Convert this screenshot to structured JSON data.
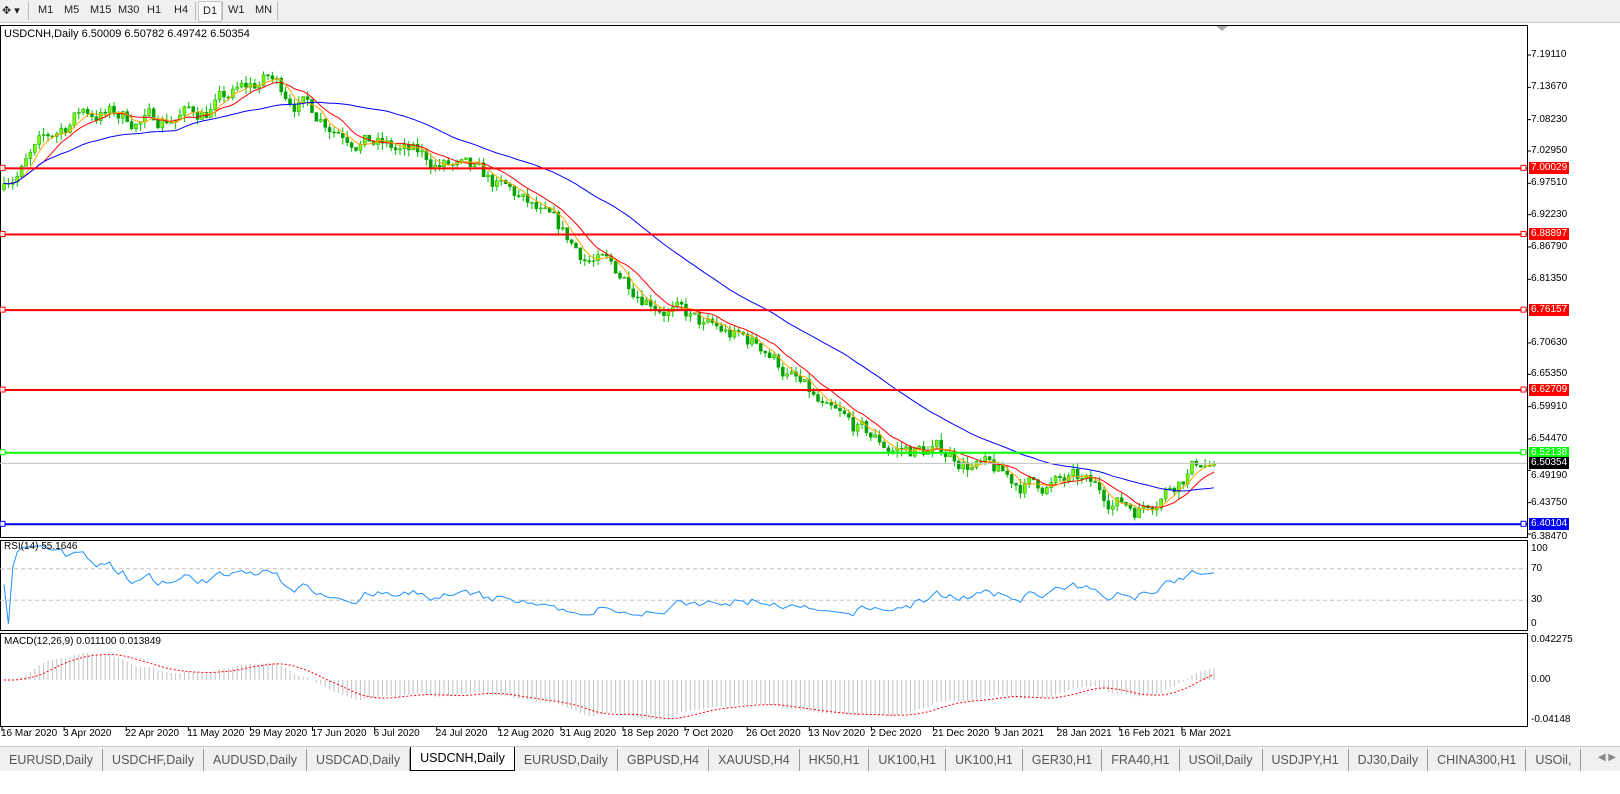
{
  "toolbar": {
    "timeframes": [
      "M1",
      "M5",
      "M15",
      "M30",
      "H1",
      "H4",
      "D1",
      "W1",
      "MN"
    ],
    "active": "D1"
  },
  "header": {
    "text": "USDCNH,Daily  6.50009 6.50782 6.49742 6.50354"
  },
  "price_axis": {
    "ticks": [
      "7.19110",
      "7.13670",
      "7.08230",
      "7.02950",
      "6.97510",
      "6.92230",
      "6.86790",
      "6.81350",
      "6.70630",
      "6.65350",
      "6.59910",
      "6.54470",
      "6.49190",
      "6.43750",
      "6.38470"
    ]
  },
  "levels": [
    {
      "value": "7.00029",
      "color": "#ff0000"
    },
    {
      "value": "6.88897",
      "color": "#ff0000"
    },
    {
      "value": "6.76157",
      "color": "#ff0000"
    },
    {
      "value": "6.62709",
      "color": "#ff0000"
    },
    {
      "value": "6.52138",
      "color": "#00ff00"
    },
    {
      "value": "6.40104",
      "color": "#0000ff"
    }
  ],
  "current_price": {
    "value": "6.50354",
    "color": "#000000"
  },
  "rsi": {
    "label": "RSI(14) 55.1646",
    "ticks": [
      "100",
      "70",
      "30",
      "0"
    ],
    "color": "#1e90ff"
  },
  "macd": {
    "label": "MACD(12,26,9) 0.011100 0.013849",
    "ticks": [
      "0.042275",
      "0.00",
      "-0.04148"
    ],
    "signal_color": "#ff0000",
    "hist_color": "#c0c0c0"
  },
  "date_axis": [
    "16 Mar 2020",
    "3 Apr 2020",
    "22 Apr 2020",
    "11 May 2020",
    "29 May 2020",
    "17 Jun 2020",
    "6 Jul 2020",
    "24 Jul 2020",
    "12 Aug 2020",
    "31 Aug 2020",
    "18 Sep 2020",
    "7 Oct 2020",
    "26 Oct 2020",
    "13 Nov 2020",
    "2 Dec 2020",
    "21 Dec 2020",
    "9 Jan 2021",
    "28 Jan 2021",
    "16 Feb 2021",
    "6 Mar 2021"
  ],
  "chart_data": {
    "type": "candlestick",
    "symbol": "USDCNH",
    "timeframe": "Daily",
    "approx_closes": [
      [
        "16 Mar 2020",
        7.0
      ],
      [
        "3 Apr 2020",
        7.1
      ],
      [
        "22 Apr 2020",
        7.08
      ],
      [
        "11 May 2020",
        7.1
      ],
      [
        "29 May 2020",
        7.15
      ],
      [
        "17 Jun 2020",
        7.08
      ],
      [
        "6 Jul 2020",
        7.03
      ],
      [
        "24 Jul 2020",
        7.0
      ],
      [
        "12 Aug 2020",
        6.95
      ],
      [
        "31 Aug 2020",
        6.86
      ],
      [
        "18 Sep 2020",
        6.8
      ],
      [
        "7 Oct 2020",
        6.73
      ],
      [
        "26 Oct 2020",
        6.7
      ],
      [
        "13 Nov 2020",
        6.58
      ],
      [
        "2 Dec 2020",
        6.53
      ],
      [
        "21 Dec 2020",
        6.52
      ],
      [
        "9 Jan 2021",
        6.47
      ],
      [
        "28 Jan 2021",
        6.47
      ],
      [
        "16 Feb 2021",
        6.43
      ],
      [
        "6 Mar 2021",
        6.51
      ]
    ],
    "last": {
      "open": 6.50009,
      "high": 6.50782,
      "low": 6.49742,
      "close": 6.50354
    },
    "ylim": [
      6.3847,
      7.1911
    ],
    "ma_colors": [
      "#ff0000",
      "#ffa500",
      "#0000ff"
    ]
  },
  "tabs": [
    "EURUSD,Daily",
    "USDCHF,Daily",
    "AUDUSD,Daily",
    "USDCAD,Daily",
    "USDCNH,Daily",
    "EURUSD,Daily",
    "GBPUSD,H4",
    "XAUUSD,H4",
    "HK50,H1",
    "UK100,H1",
    "UK100,H1",
    "GER30,H1",
    "FRA40,H1",
    "USOil,Daily",
    "USDJPY,H1",
    "DJ30,Daily",
    "CHINA300,H1",
    "USOil,"
  ],
  "active_tab": "USDCNH,Daily"
}
